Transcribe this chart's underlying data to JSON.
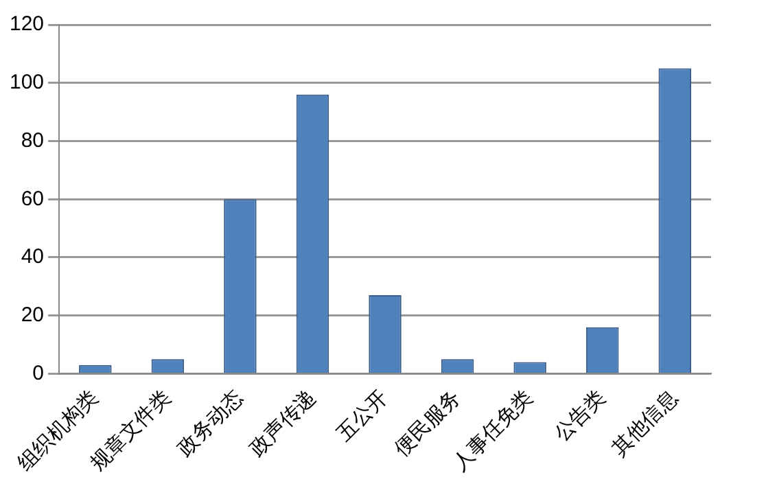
{
  "chart_data": {
    "type": "bar",
    "categories": [
      "组织机构类",
      "规章文件类",
      "政务动态",
      "政声传递",
      "五公开",
      "便民服务",
      "人事任免类",
      "公告类",
      "其他信息"
    ],
    "values": [
      3,
      5,
      60,
      96,
      27,
      5,
      4,
      16,
      105
    ],
    "color": "#4f81bd",
    "ylim": [
      0,
      120
    ],
    "yticks": [
      0,
      20,
      40,
      60,
      80,
      100,
      120
    ],
    "grid": "y",
    "legend": false
  }
}
